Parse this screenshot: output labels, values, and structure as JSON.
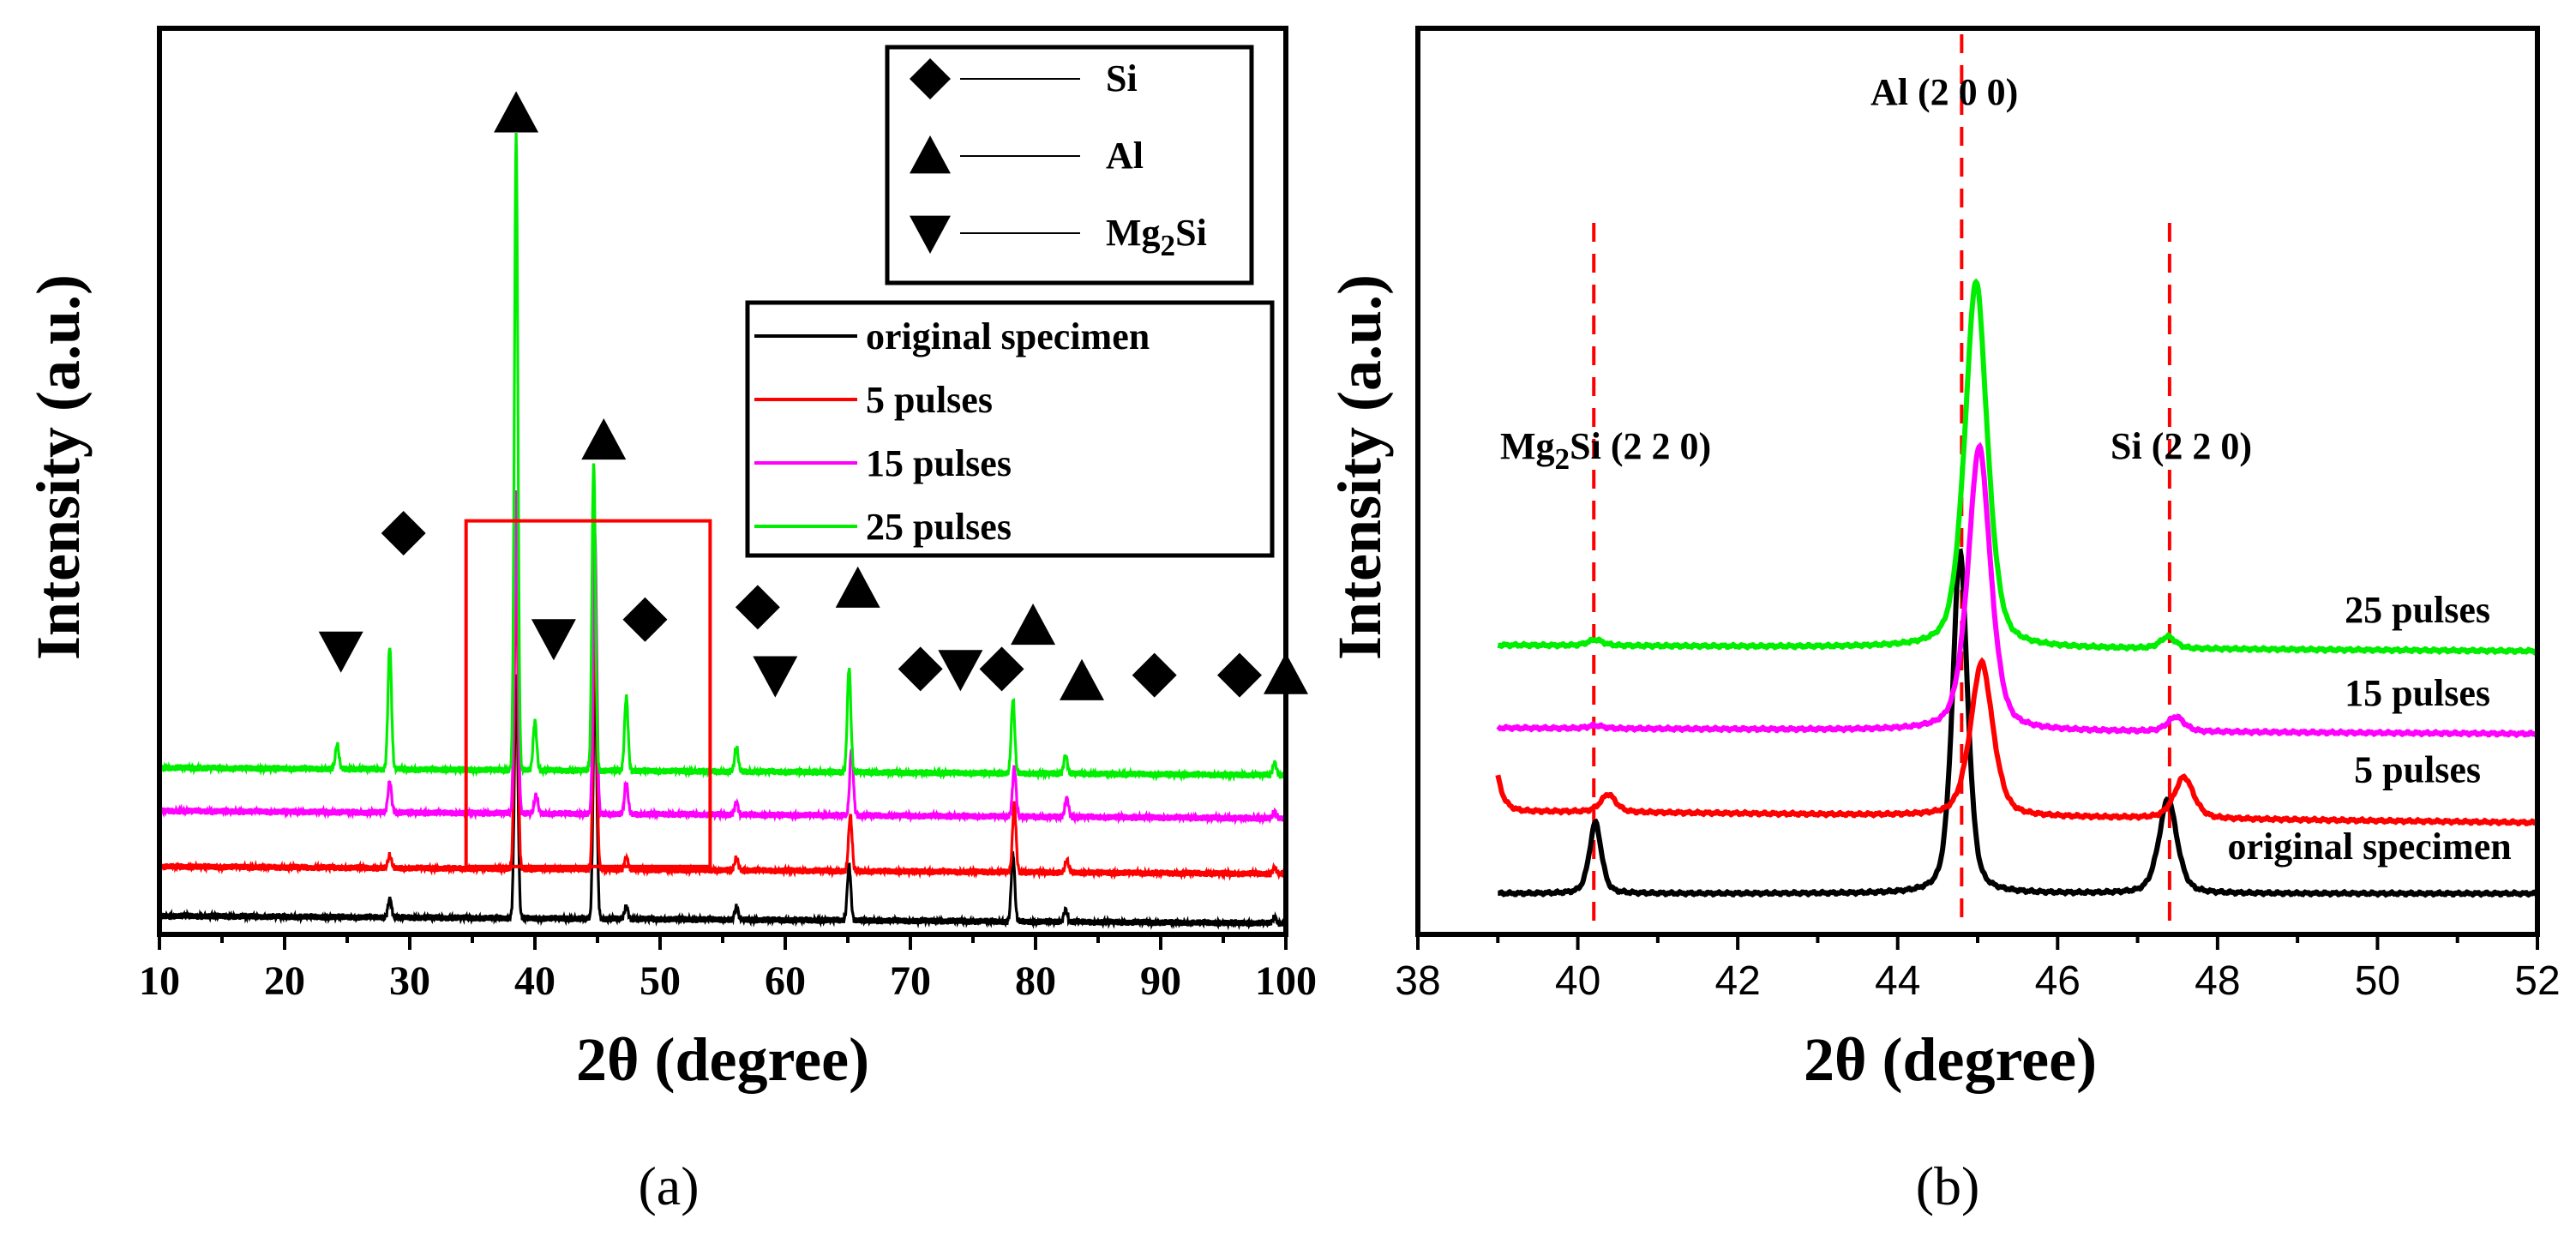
{
  "chart_data": [
    {
      "type": "line",
      "panel": "(a)",
      "caption": "(a)",
      "xlabel": "2θ (degree)",
      "ylabel": "Intensity (a.u.)",
      "xlim": [
        10,
        100
      ],
      "ylim": [
        0,
        100
      ],
      "xticks": [
        10,
        20,
        30,
        40,
        50,
        60,
        70,
        80,
        90,
        100
      ],
      "yticks_shown": false,
      "phase_legend": [
        {
          "marker": "diamond",
          "label": "Si"
        },
        {
          "marker": "triangle-up",
          "label": "Al"
        },
        {
          "marker": "triangle-down",
          "label": "Mg",
          "sub": "2",
          "suffix": "Si"
        }
      ],
      "series_legend": [
        {
          "name": "original specimen",
          "color": "#000000"
        },
        {
          "name": "5 pulses",
          "color": "#ff0000"
        },
        {
          "name": "15 pulses",
          "color": "#ff00ff"
        },
        {
          "name": "25 pulses",
          "color": "#00ee00"
        }
      ],
      "series": [
        {
          "name": "original specimen",
          "color": "#000000",
          "baseline": 3,
          "peaks": [
            [
              28.4,
              3
            ],
            [
              38.5,
              40
            ],
            [
              44.8,
              40
            ],
            [
              47.3,
              2
            ],
            [
              56.1,
              2
            ],
            [
              65.1,
              9
            ],
            [
              78.2,
              11
            ],
            [
              82.4,
              2
            ],
            [
              99.1,
              1
            ]
          ]
        },
        {
          "name": "5 pulses",
          "color": "#ff0000",
          "baseline": 11,
          "peaks": [
            [
              28.4,
              2
            ],
            [
              38.5,
              50
            ],
            [
              44.8,
              42
            ],
            [
              47.3,
              2
            ],
            [
              56.1,
              2
            ],
            [
              65.2,
              9
            ],
            [
              78.3,
              11
            ],
            [
              82.5,
              2
            ],
            [
              99.1,
              1
            ]
          ]
        },
        {
          "name": "15 pulses",
          "color": "#ff00ff",
          "baseline": 20,
          "peaks": [
            [
              28.4,
              5
            ],
            [
              38.5,
              52
            ],
            [
              40.1,
              3
            ],
            [
              44.8,
              45
            ],
            [
              47.3,
              5
            ],
            [
              56.1,
              2
            ],
            [
              65.3,
              11
            ],
            [
              78.3,
              8
            ],
            [
              82.5,
              3
            ],
            [
              99.1,
              1
            ]
          ]
        },
        {
          "name": "25 pulses",
          "color": "#00ee00",
          "baseline": 27,
          "peaks": [
            [
              24.2,
              4
            ],
            [
              28.4,
              20
            ],
            [
              38.5,
              103
            ],
            [
              40.0,
              8
            ],
            [
              44.7,
              50
            ],
            [
              47.3,
              12
            ],
            [
              56.1,
              4
            ],
            [
              65.1,
              17
            ],
            [
              78.2,
              12
            ],
            [
              82.4,
              3
            ],
            [
              99.1,
              2
            ]
          ]
        }
      ],
      "phase_markers": [
        {
          "marker": "triangle-down",
          "x": 24.5,
          "y": 46
        },
        {
          "marker": "diamond",
          "x": 29.5,
          "y": 65
        },
        {
          "marker": "triangle-up",
          "x": 38.5,
          "y": 133
        },
        {
          "marker": "triangle-down",
          "x": 41.5,
          "y": 48
        },
        {
          "marker": "triangle-up",
          "x": 45.5,
          "y": 80
        },
        {
          "marker": "diamond",
          "x": 48.8,
          "y": 51
        },
        {
          "marker": "diamond",
          "x": 57.8,
          "y": 53
        },
        {
          "marker": "triangle-down",
          "x": 59.2,
          "y": 42
        },
        {
          "marker": "triangle-up",
          "x": 65.8,
          "y": 56
        },
        {
          "marker": "diamond",
          "x": 70.8,
          "y": 43
        },
        {
          "marker": "triangle-down",
          "x": 74.0,
          "y": 43
        },
        {
          "marker": "diamond",
          "x": 77.3,
          "y": 43
        },
        {
          "marker": "triangle-up",
          "x": 79.8,
          "y": 50
        },
        {
          "marker": "triangle-up",
          "x": 83.7,
          "y": 41
        },
        {
          "marker": "diamond",
          "x": 89.5,
          "y": 42
        },
        {
          "marker": "diamond",
          "x": 96.3,
          "y": 42
        },
        {
          "marker": "triangle-up",
          "x": 100.0,
          "y": 42
        }
      ],
      "highlight_box": {
        "x0": 34.5,
        "x1": 54.0,
        "y0": 11,
        "y1": 67
      }
    },
    {
      "type": "line",
      "panel": "(b)",
      "caption": "(b)",
      "xlabel": "2θ (degree)",
      "ylabel": "Intensity (a.u.)",
      "xlim": [
        38,
        52
      ],
      "ylim": [
        0,
        100
      ],
      "xticks": [
        38,
        40,
        42,
        44,
        46,
        48,
        50,
        52
      ],
      "yticks_shown": false,
      "reference_lines": [
        {
          "x": 40.2,
          "label": "Mg",
          "sub": "2",
          "suffix": "Si (2 2 0)"
        },
        {
          "x": 44.8,
          "label": "Al (2 0 0)",
          "sub": "",
          "suffix": ""
        },
        {
          "x": 47.4,
          "label": "Si (2 2 0)",
          "sub": "",
          "suffix": ""
        }
      ],
      "series": [
        {
          "name": "original specimen",
          "color": "#000000",
          "baseline": 4,
          "end": 4,
          "peaks": [
            [
              40.22,
              12,
              0.08
            ],
            [
              44.78,
              58,
              0.1
            ],
            [
              47.38,
              16,
              0.12
            ]
          ]
        },
        {
          "name": "5 pulses",
          "color": "#ff0000",
          "baseline": 18,
          "end": 16,
          "peaks": [
            [
              40.38,
              3,
              0.1
            ],
            [
              45.05,
              26,
              0.15
            ],
            [
              47.58,
              7,
              0.13
            ]
          ]
        },
        {
          "name": "15 pulses",
          "color": "#ff00ff",
          "baseline": 32,
          "end": 31,
          "peaks": [
            [
              40.22,
              0.5,
              0.1
            ],
            [
              45.02,
              48,
              0.15
            ],
            [
              47.48,
              2.5,
              0.11
            ]
          ]
        },
        {
          "name": "25 pulses",
          "color": "#00ee00",
          "baseline": 46,
          "end": 45,
          "peaks": [
            [
              40.22,
              1,
              0.1
            ],
            [
              44.98,
              62,
              0.15
            ],
            [
              47.38,
              2,
              0.1
            ]
          ]
        }
      ],
      "curve_labels": [
        {
          "text": "25 pulses",
          "x": 50.5,
          "y": 52
        },
        {
          "text": "15 pulses",
          "x": 50.5,
          "y": 38
        },
        {
          "text": "5 pulses",
          "x": 50.5,
          "y": 25
        },
        {
          "text": "original specimen",
          "x": 49.9,
          "y": 12
        }
      ]
    }
  ]
}
